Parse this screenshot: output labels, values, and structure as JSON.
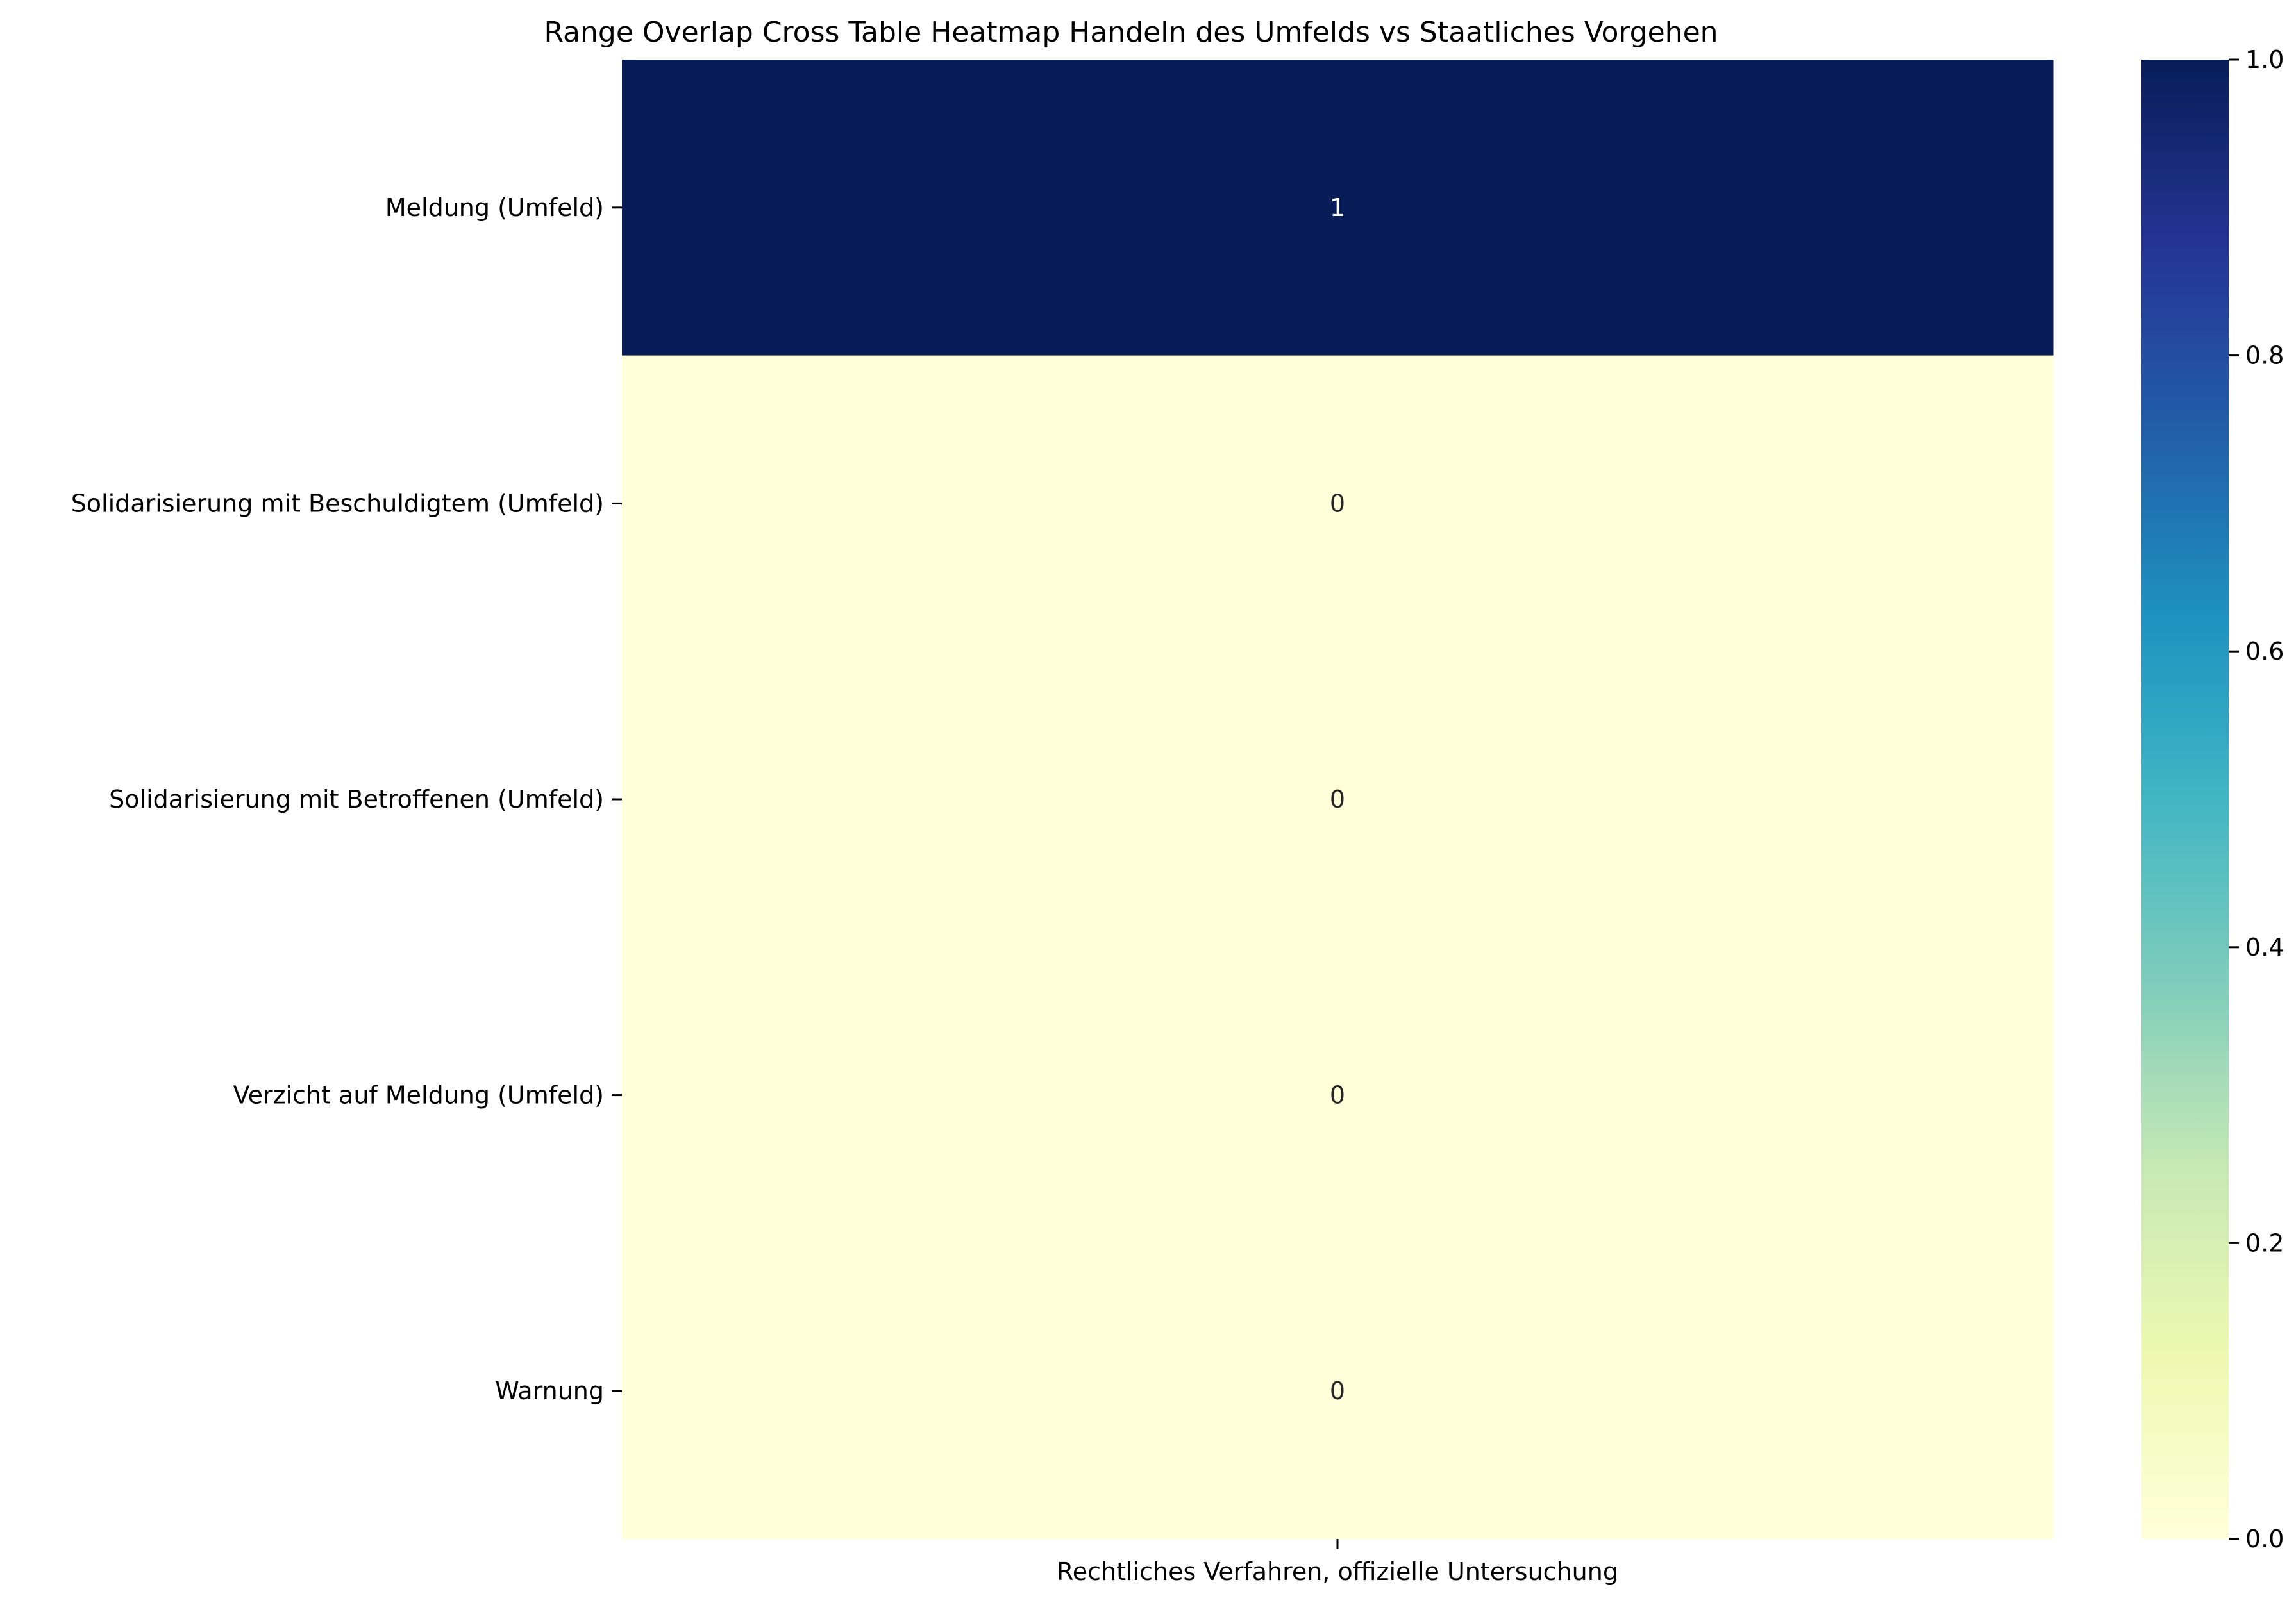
{
  "chart_data": {
    "type": "heatmap",
    "title": "Range Overlap Cross Table Heatmap Handeln des Umfelds vs Staatliches Vorgehen",
    "xlabel": "",
    "ylabel": "",
    "x_categories": [
      "Rechtliches Verfahren, offizielle Untersuchung"
    ],
    "y_categories": [
      "Meldung (Umfeld)",
      "Solidarisierung mit Beschuldigtem (Umfeld)",
      "Solidarisierung mit Betroffenen (Umfeld)",
      "Verzicht auf Meldung (Umfeld)",
      "Warnung"
    ],
    "values": [
      [
        1
      ],
      [
        0
      ],
      [
        0
      ],
      [
        0
      ],
      [
        0
      ]
    ],
    "annotations": [
      [
        "1"
      ],
      [
        "0"
      ],
      [
        "0"
      ],
      [
        "0"
      ],
      [
        "0"
      ]
    ],
    "colormap": "YlGnBu",
    "colorbar": {
      "min": 0.0,
      "max": 1.0,
      "ticks": [
        0.0,
        0.2,
        0.4,
        0.6,
        0.8,
        1.0
      ],
      "tick_labels": [
        "0.0",
        "0.2",
        "0.4",
        "0.6",
        "0.8",
        "1.0"
      ]
    },
    "colors": {
      "low": "#ffffd9",
      "high": "#081d58"
    }
  }
}
